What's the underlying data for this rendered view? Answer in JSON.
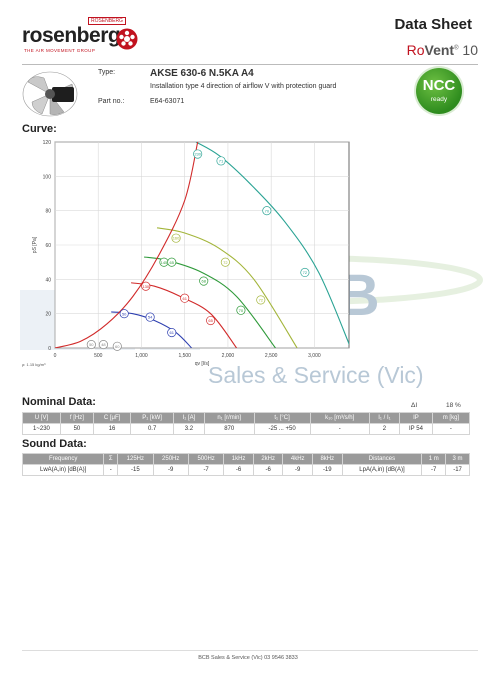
{
  "header": {
    "logo_text": "rosenberg",
    "logo_tagline": "THE AIR MOVEMENT GROUP",
    "logo_badge": "ROSENBERG",
    "title": "Data Sheet",
    "product_name_red": "Ro",
    "product_name_bold": "Vent",
    "product_suffix": "10",
    "reg": "®"
  },
  "product": {
    "type_label": "Type:",
    "type_value": "AKSE 630-6 N.5KA A4",
    "description": "Installation type 4 direction of airflow V with protection guard",
    "part_label": "Part no.:",
    "part_value": "E64-63071"
  },
  "badge": {
    "big": "NCC",
    "small": "ready"
  },
  "sections": {
    "curve": "Curve:",
    "nominal": "Nominal Data:",
    "sound": "Sound Data:"
  },
  "watermark": {
    "big": "BCB",
    "sub": "Sales & Service (Vic)"
  },
  "chart_data": {
    "type": "line",
    "xlabel": "qv [l/s]",
    "ylabel": "pS [Pa]",
    "density_label": "ρ: 1.15 kg/m³",
    "xlim": [
      0,
      3400
    ],
    "ylim": [
      0,
      120
    ],
    "x_ticks": [
      0,
      500,
      1000,
      1500,
      2000,
      2500,
      3000
    ],
    "x_tick_labels": [
      "0",
      "500",
      "1,000",
      "1,500",
      "2,000",
      "2,500",
      "3,000"
    ],
    "y_ticks": [
      0,
      20,
      40,
      60,
      80,
      100,
      120
    ],
    "colors": {
      "system": "#d12a2a",
      "curve230": "#2aa394",
      "curve160": "#a3b53a",
      "curve145": "#2f9a3a",
      "curve130": "#d12a2a",
      "curve50": "#2d3fb0"
    },
    "series": [
      {
        "label": "230V",
        "color": "#2aa394",
        "x": [
          1630,
          1900,
          2250,
          2650,
          3050,
          3420
        ],
        "y": [
          120,
          112,
          96,
          74,
          44,
          0
        ]
      },
      {
        "label": "160V",
        "color": "#a3b53a",
        "x": [
          1180,
          1500,
          1900,
          2300,
          2800
        ],
        "y": [
          70,
          67,
          58,
          40,
          0
        ]
      },
      {
        "label": "145V",
        "color": "#2f9a3a",
        "x": [
          1030,
          1300,
          1700,
          2100,
          2550
        ],
        "y": [
          53,
          51,
          44,
          30,
          0
        ]
      },
      {
        "label": "130V",
        "color": "#d12a2a",
        "x": [
          880,
          1150,
          1450,
          1800,
          2100
        ],
        "y": [
          38,
          36,
          30,
          20,
          0
        ]
      },
      {
        "label": "50V",
        "color": "#2d3fb0",
        "x": [
          650,
          900,
          1150,
          1400,
          1580
        ],
        "y": [
          21,
          20,
          16,
          9,
          0
        ]
      },
      {
        "label": "system",
        "color": "#d12a2a",
        "x": [
          0,
          300,
          600,
          900,
          1200,
          1500,
          1650
        ],
        "y": [
          0,
          4,
          14,
          30,
          54,
          86,
          120
        ]
      }
    ],
    "markers": [
      {
        "text": "230",
        "x": 1650,
        "y": 113,
        "color": "#2aa394"
      },
      {
        "text": "71",
        "x": 1920,
        "y": 109,
        "color": "#2aa394"
      },
      {
        "text": "70",
        "x": 2450,
        "y": 80,
        "color": "#2aa394"
      },
      {
        "text": "72",
        "x": 2890,
        "y": 44,
        "color": "#2aa394"
      },
      {
        "text": "160",
        "x": 1400,
        "y": 64,
        "color": "#a3b53a"
      },
      {
        "text": "72",
        "x": 1970,
        "y": 50,
        "color": "#a3b53a"
      },
      {
        "text": "72",
        "x": 2380,
        "y": 28,
        "color": "#a3b53a"
      },
      {
        "text": "145",
        "x": 1260,
        "y": 50,
        "color": "#2f9a3a"
      },
      {
        "text": "65",
        "x": 1350,
        "y": 50,
        "color": "#2f9a3a"
      },
      {
        "text": "68",
        "x": 1720,
        "y": 39,
        "color": "#2f9a3a"
      },
      {
        "text": "70",
        "x": 2150,
        "y": 22,
        "color": "#2f9a3a"
      },
      {
        "text": "130",
        "x": 1050,
        "y": 36,
        "color": "#d12a2a"
      },
      {
        "text": "61",
        "x": 1500,
        "y": 29,
        "color": "#d12a2a"
      },
      {
        "text": "65",
        "x": 1800,
        "y": 16,
        "color": "#d12a2a"
      },
      {
        "text": "50",
        "x": 800,
        "y": 20,
        "color": "#2d3fb0"
      },
      {
        "text": "54",
        "x": 1100,
        "y": 18,
        "color": "#2d3fb0"
      },
      {
        "text": "61",
        "x": 1350,
        "y": 9,
        "color": "#2d3fb0"
      },
      {
        "text": "50",
        "x": 420,
        "y": 2,
        "color": "#888888"
      },
      {
        "text": "48",
        "x": 560,
        "y": 2,
        "color": "#888888"
      },
      {
        "text": "60",
        "x": 720,
        "y": 1,
        "color": "#888888"
      }
    ]
  },
  "nominal": {
    "delta_label": "ΔI",
    "delta_value": "18 %",
    "headers": [
      "U [V]",
      "f [Hz]",
      "C [μF]",
      "P₁ [kW]",
      "I₁ [A]",
      "n₁ [r/min]",
      "t₁ [°C]",
      "k₁₀ [m³/s/h]",
      "I₁ / I₁",
      "IP",
      "m [kg]"
    ],
    "values": [
      "1~230",
      "50",
      "16",
      "0.7",
      "3.2",
      "870",
      "-25 ... +50",
      "-",
      "2",
      "IP 54",
      "-"
    ]
  },
  "sound": {
    "headers": [
      "Frequency",
      "Σ",
      "125Hz",
      "250Hz",
      "500Hz",
      "1kHz",
      "2kHz",
      "4kHz",
      "8kHz",
      "Distances",
      "1 m",
      "3 m"
    ],
    "values": [
      "LwA(A,in) [dB(A)]",
      "-",
      "-15",
      "-9",
      "-7",
      "-6",
      "-6",
      "-9",
      "-19",
      "LpA(A,in) [dB(A)]",
      "-7",
      "-17"
    ]
  },
  "footer": {
    "text": "BCB Sales & Service (Vic) 03 9546 3833"
  }
}
